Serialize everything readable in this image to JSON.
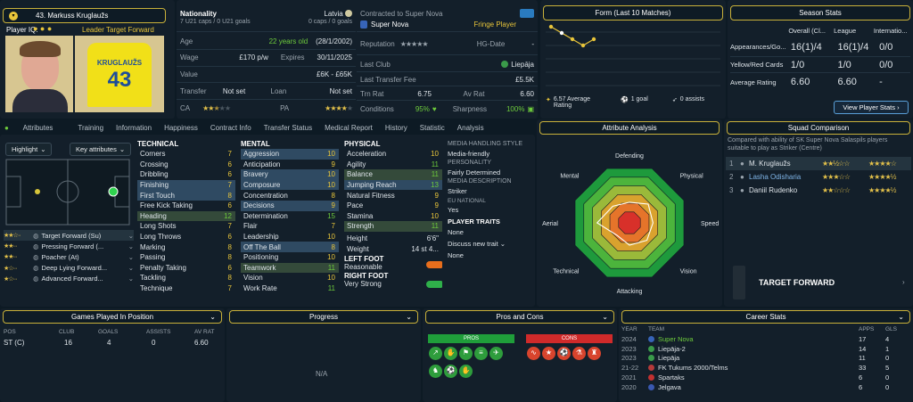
{
  "player": {
    "number_name": "43. Markuss Kruglaužs",
    "iq_label": "Player IQ:",
    "role": "Leader Target Forward",
    "shirt_name": "KRUGLAUŽS",
    "shirt_number": "43"
  },
  "info": {
    "nationality_label": "Nationality",
    "nationality": "Latvia",
    "caps": "7 U21 caps / 0 U21 goals",
    "caps_right": "0 caps / 0 goals",
    "contract_label": "Contracted to Super Nova",
    "club": "Super Nova",
    "squad_status": "Fringe Player",
    "age_label": "Age",
    "age": "22 years old",
    "dob": "(28/1/2002)",
    "reputation_label": "Reputation",
    "hg_label": "HG-Date",
    "hg_value": "-",
    "wage_label": "Wage",
    "wage": "£170 p/w",
    "expires_label": "Expires",
    "expires": "30/11/2025",
    "lastclub_label": "Last Club",
    "lastclub": "Liepāja",
    "value_label": "Value",
    "value": "£6K - £65K",
    "ltf_label": "Last Transfer Fee",
    "ltf": "£5.5K",
    "transfer_label": "Transfer",
    "transfer": "Not set",
    "loan_label": "Loan",
    "loan": "Not set",
    "trn_label": "Trn Rat",
    "trn": "6.75",
    "av_label": "Av Rat",
    "av": "6.60",
    "ca_label": "CA",
    "pa_label": "PA",
    "cond_label": "Conditions",
    "cond": "95%",
    "sharp_label": "Sharpness",
    "sharp": "100%"
  },
  "form": {
    "title": "Form (Last 10 Matches)",
    "avg": "6.57 Average Rating",
    "goals": "1 goal",
    "assists": "0 assists",
    "ratings": [
      6.8,
      6.7,
      6.6,
      6.5,
      6.6
    ]
  },
  "season": {
    "title": "Season Stats",
    "cols": [
      "Overall (Cl...",
      "League",
      "Internatio..."
    ],
    "rows": [
      {
        "label": "Appearances/Go...",
        "vals": [
          "16(1)/4",
          "16(1)/4",
          "0/0"
        ]
      },
      {
        "label": "Yellow/Red Cards",
        "vals": [
          "1/0",
          "1/0",
          "0/0"
        ]
      },
      {
        "label": "Average Rating",
        "vals": [
          "6.60",
          "6.60",
          "-"
        ]
      }
    ],
    "button": "View Player Stats"
  },
  "tabs": [
    "Attributes",
    "Training",
    "Information",
    "Happiness",
    "Contract Info",
    "Transfer Status",
    "Medical Report",
    "History",
    "Statistic",
    "Analysis"
  ],
  "controls": {
    "highlight": "Highlight",
    "key": "Key attributes"
  },
  "roles": [
    {
      "name": "Target Forward (Su)",
      "stars": 2.5
    },
    {
      "name": "Pressing Forward (...",
      "stars": 2
    },
    {
      "name": "Poacher (At)",
      "stars": 2
    },
    {
      "name": "Deep Lying Forward...",
      "stars": 1.5
    },
    {
      "name": "Advanced Forward...",
      "stars": 1.5
    }
  ],
  "technical": {
    "title": "TECHNICAL",
    "items": [
      [
        "Corners",
        "7"
      ],
      [
        "Crossing",
        "6"
      ],
      [
        "Dribbling",
        "6"
      ],
      [
        "Finishing",
        "7"
      ],
      [
        "First Touch",
        "8"
      ],
      [
        "Free Kick Taking",
        "6"
      ],
      [
        "Heading",
        "12"
      ],
      [
        "Long Shots",
        "7"
      ],
      [
        "Long Throws",
        "6"
      ],
      [
        "Marking",
        "8"
      ],
      [
        "Passing",
        "8"
      ],
      [
        "Penalty Taking",
        "6"
      ],
      [
        "Tackling",
        "8"
      ],
      [
        "Technique",
        "7"
      ]
    ]
  },
  "mental": {
    "title": "MENTAL",
    "items": [
      [
        "Aggression",
        "10"
      ],
      [
        "Anticipation",
        "9"
      ],
      [
        "Bravery",
        "10"
      ],
      [
        "Composure",
        "10"
      ],
      [
        "Concentration",
        "8"
      ],
      [
        "Decisions",
        "9"
      ],
      [
        "Determination",
        "15"
      ],
      [
        "Flair",
        "7"
      ],
      [
        "Leadership",
        "10"
      ],
      [
        "Off The Ball",
        "8"
      ],
      [
        "Positioning",
        "10"
      ],
      [
        "Teamwork",
        "11"
      ],
      [
        "Vision",
        "10"
      ],
      [
        "Work Rate",
        "11"
      ]
    ]
  },
  "physical": {
    "title": "PHYSICAL",
    "items": [
      [
        "Acceleration",
        "10"
      ],
      [
        "Agility",
        "11"
      ],
      [
        "Balance",
        "11"
      ],
      [
        "Jumping Reach",
        "13"
      ],
      [
        "Natural Fitness",
        "9"
      ],
      [
        "Pace",
        "9"
      ],
      [
        "Stamina",
        "10"
      ],
      [
        "Strength",
        "11"
      ]
    ]
  },
  "body": {
    "height_label": "Height",
    "height": "6'6\"",
    "weight_label": "Weight",
    "weight": "14 st 4...",
    "lf_label": "LEFT FOOT",
    "lf": "Reasonable",
    "rf_label": "RIGHT FOOT",
    "rf": "Very Strong"
  },
  "media": {
    "style_label": "MEDIA HANDLING STYLE",
    "style": "Media-friendly",
    "pers_label": "PERSONALITY",
    "pers": "Fairly Determined",
    "desc_label": "MEDIA DESCRIPTION",
    "desc": "Striker",
    "eu_label": "EU NATIONAL",
    "eu": "Yes",
    "traits_label": "PLAYER TRAITS",
    "traits": "None",
    "discuss": "Discuss new trait",
    "none2": "None"
  },
  "analysis": {
    "title": "Attribute Analysis",
    "labels": [
      "Defending",
      "Physical",
      "Speed",
      "Vision",
      "Attacking",
      "Technical",
      "Aerial",
      "Mental"
    ],
    "values": [
      0.35,
      0.45,
      0.4,
      0.42,
      0.38,
      0.3,
      0.55,
      0.4
    ]
  },
  "squad": {
    "title": "Squad Comparison",
    "desc": "Compared with ability of SK Super Nova Salaspils players suitable to play as Striker (Centre)",
    "rows": [
      {
        "n": "1",
        "name": "M. Kruglaužs",
        "cur": 2.5,
        "pot": 4
      },
      {
        "n": "2",
        "name": "Lasha Odisharia",
        "cur": 3,
        "pot": 4.5
      },
      {
        "n": "3",
        "name": "Daniil Rudenko",
        "cur": 2,
        "pot": 4.5
      }
    ],
    "role": "TARGET FORWARD"
  },
  "gpp": {
    "title": "Games Played In Position",
    "cols": [
      "POS",
      "CLUB",
      "GOALS",
      "ASSISTS",
      "AV RAT"
    ],
    "row": [
      "ST (C)",
      "16",
      "4",
      "0",
      "6.60"
    ]
  },
  "progress": {
    "title": "Progress",
    "na": "N/A"
  },
  "pros": {
    "title": "Pros and Cons",
    "pros": "PROS",
    "cons": "CONS"
  },
  "career": {
    "title": "Career Stats",
    "cols": [
      "YEAR",
      "TEAM",
      "APPS",
      "GLS"
    ],
    "rows": [
      [
        "2024",
        "Super Nova",
        "17",
        "4"
      ],
      [
        "2023",
        "Liepāja-2",
        "14",
        "1"
      ],
      [
        "2023",
        "Liepāja",
        "11",
        "0"
      ],
      [
        "21-22",
        "FK Tukums 2000/Telms",
        "33",
        "5"
      ],
      [
        "2021",
        "Spartaks",
        "6",
        "0"
      ],
      [
        "2020",
        "Jelgava",
        "6",
        "0"
      ]
    ]
  }
}
